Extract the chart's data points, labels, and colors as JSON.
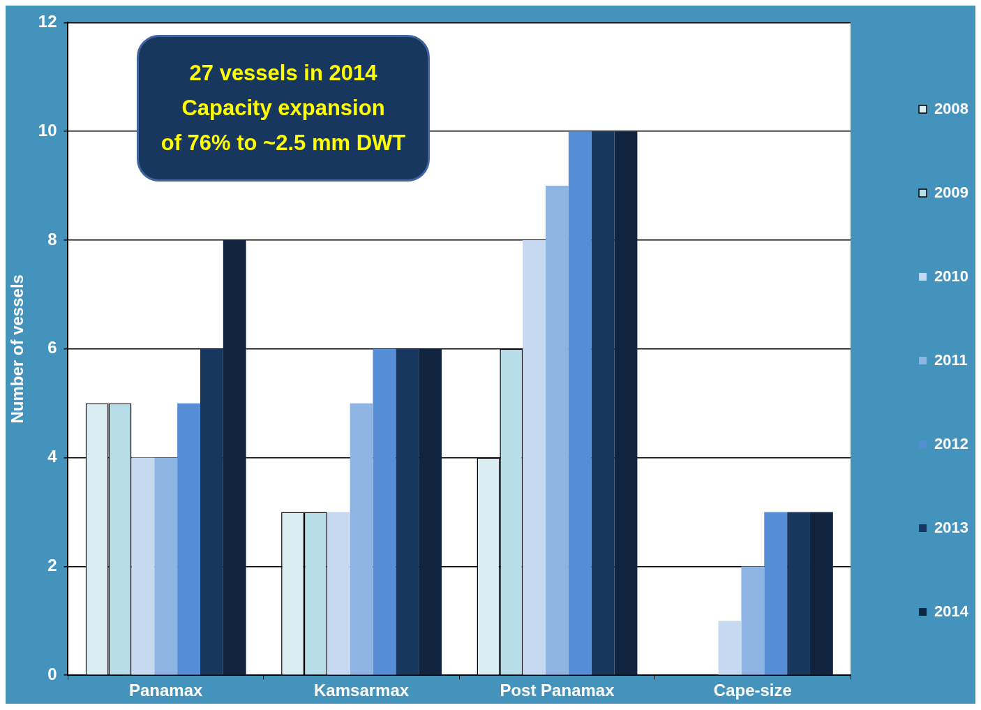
{
  "chart_data": {
    "type": "bar",
    "ylabel": "Number of vessels",
    "categories": [
      "Panamax",
      "Kamsarmax",
      "Post Panamax",
      "Cape-size"
    ],
    "series": [
      {
        "name": "2008",
        "color": "#daedf3",
        "values": [
          5,
          3,
          4,
          0
        ]
      },
      {
        "name": "2009",
        "color": "#b6dde8",
        "values": [
          5,
          3,
          6,
          0
        ]
      },
      {
        "name": "2010",
        "color": "#c6d9f1",
        "values": [
          4,
          3,
          8,
          1
        ]
      },
      {
        "name": "2011",
        "color": "#8eb4e3",
        "values": [
          4,
          5,
          9,
          2
        ]
      },
      {
        "name": "2012",
        "color": "#558ed5",
        "values": [
          5,
          6,
          10,
          3
        ]
      },
      {
        "name": "2013",
        "color": "#17375e",
        "values": [
          6,
          6,
          10,
          3
        ]
      },
      {
        "name": "2014",
        "color": "#10243f",
        "values": [
          8,
          6,
          10,
          3
        ]
      }
    ],
    "ylim": [
      0,
      12
    ],
    "yticks": [
      0,
      2,
      4,
      6,
      8,
      10,
      12
    ],
    "grid": "y",
    "legend": "right",
    "annotations": [
      "27 vessels in 2014",
      "Capacity expansion",
      "of 76% to ~2.5 mm DWT"
    ]
  }
}
